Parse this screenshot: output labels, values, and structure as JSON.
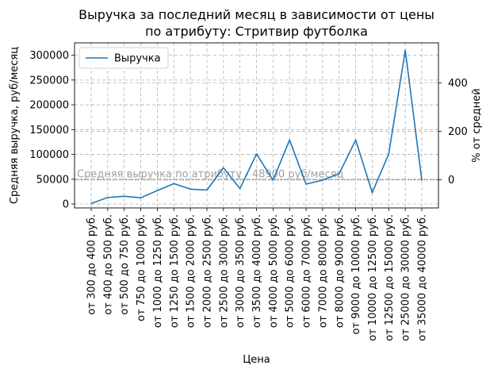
{
  "chart_data": {
    "type": "line",
    "title_lines": [
      "Выручка за последний месяц в зависимости от цены",
      "по атрибуту: Стритвир футболка"
    ],
    "xlabel": "Цена",
    "ylabel": "Средняя выручка, руб/месяц",
    "ylabel_right": "% от средней",
    "categories": [
      "от 300 до 400 руб.",
      "от 400 до 500 руб.",
      "от 500 до 750 руб.",
      "от 750 до 1000 руб.",
      "от 1000 до 1250 руб.",
      "от 1250 до 1500 руб.",
      "от 1500 до 2000 руб.",
      "от 2000 до 2500 руб.",
      "от 2500 до 3000 руб.",
      "от 3000 до 3500 руб.",
      "от 3500 до 4000 руб.",
      "от 4000 до 5000 руб.",
      "от 5000 до 6000 руб.",
      "от 6000 до 7000 руб.",
      "от 7000 до 8000 руб.",
      "от 8000 до 9000 руб.",
      "от 9000 до 10000 руб.",
      "от 10000 до 12500 руб.",
      "от 12500 до 15000 руб.",
      "от 25000 до 30000 руб.",
      "от 35000 до 40000 руб."
    ],
    "series": [
      {
        "name": "Выручка",
        "color": "#1f77b4",
        "values": [
          1000,
          13000,
          15500,
          12500,
          27000,
          41000,
          30000,
          28000,
          73000,
          31000,
          101000,
          48000,
          129000,
          40000,
          48000,
          61000,
          129000,
          23000,
          101000,
          310000,
          48000
        ]
      }
    ],
    "ylim": [
      -8000,
      325000
    ],
    "yticks": [
      0,
      50000,
      100000,
      150000,
      200000,
      250000,
      300000
    ],
    "ytick_labels": [
      "0",
      "50000",
      "100000",
      "150000",
      "200000",
      "250000",
      "300000"
    ],
    "yticks_right": [
      0,
      200,
      400
    ],
    "ytick_labels_right": [
      "0",
      "200",
      "400"
    ],
    "reference_line": {
      "value": 48900,
      "label": "Средняя выручка по атрибуту - 48900 руб/месяц",
      "color": "#a0a0a0"
    },
    "grid": true,
    "legend": {
      "position": "top-left",
      "entries": [
        "Выручка"
      ]
    }
  }
}
